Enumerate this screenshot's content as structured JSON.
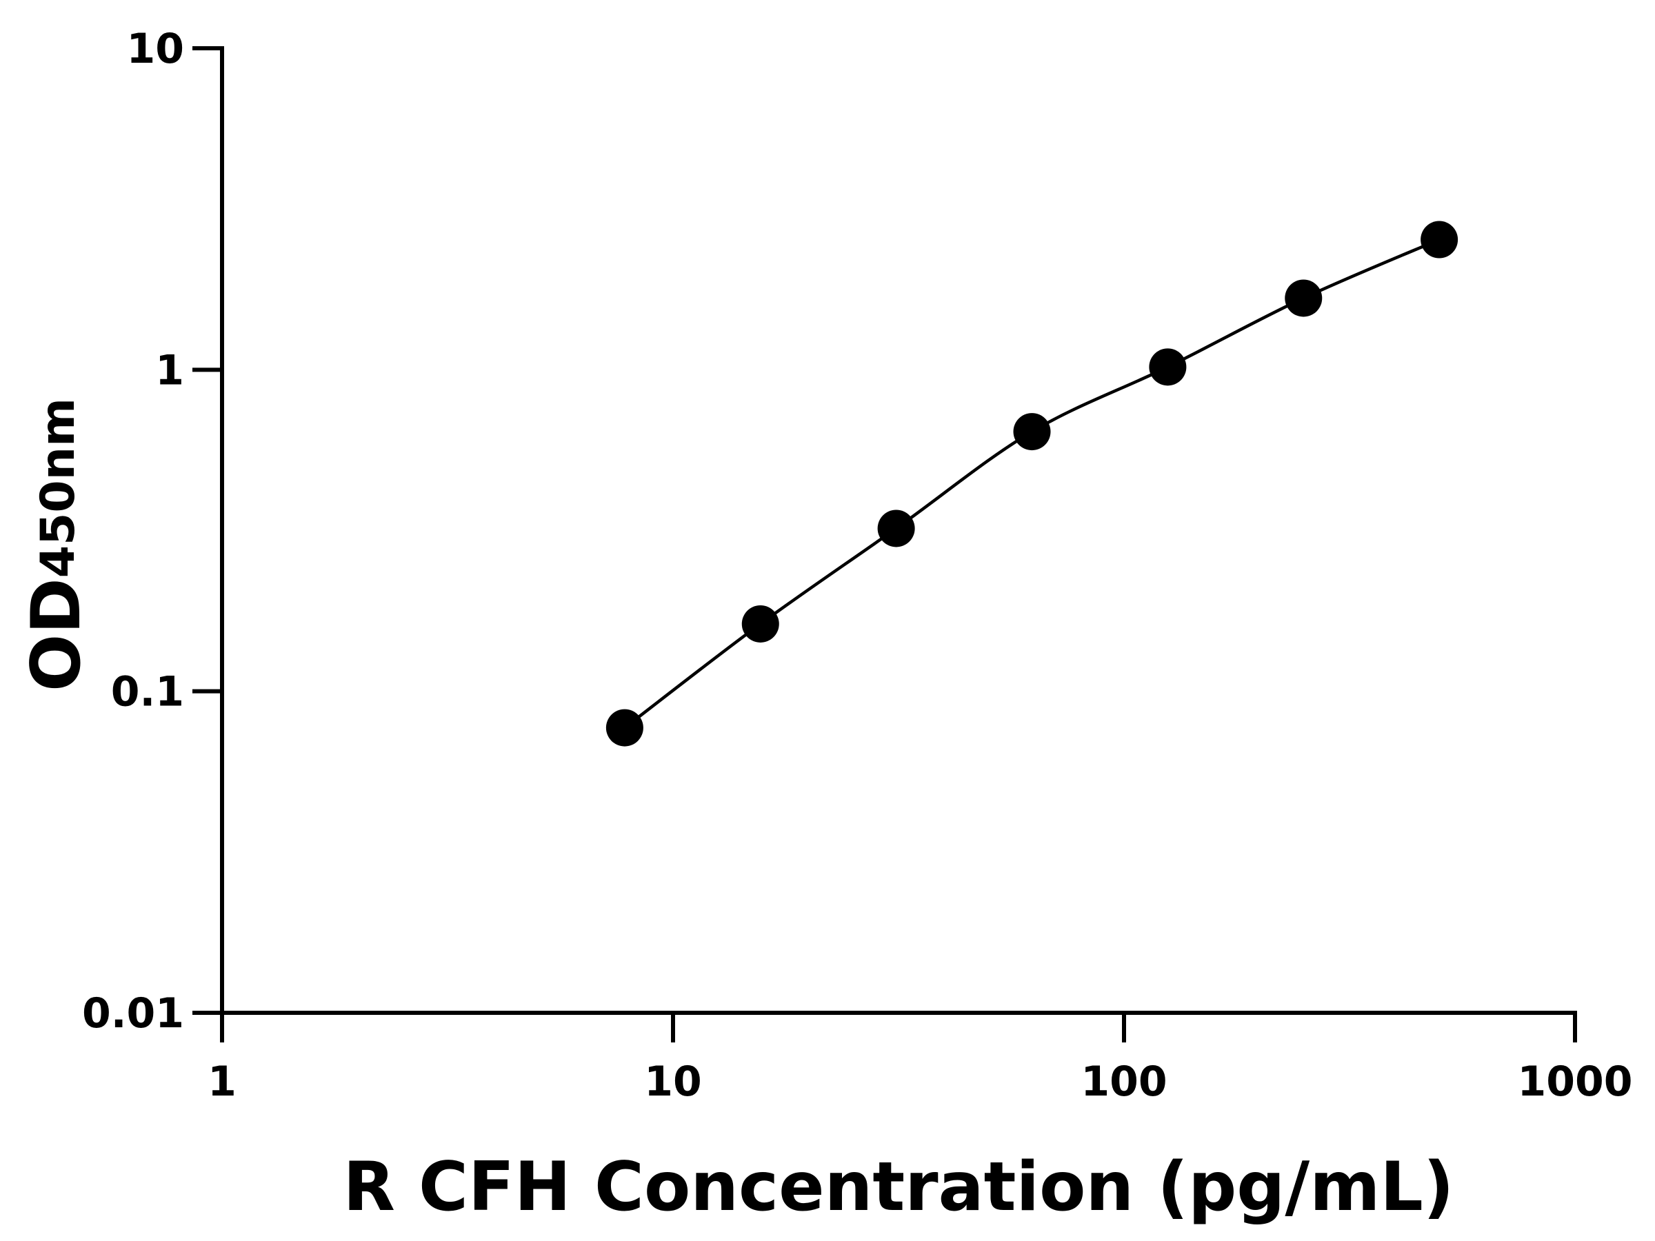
{
  "chart_data": {
    "type": "scatter",
    "x_label": "R CFH Concentration (pg/mL)",
    "y_label": "OD",
    "y_label_subscript": "450nm",
    "x": [
      7.8125,
      15.625,
      31.25,
      62.5,
      125,
      250,
      500
    ],
    "series": [
      {
        "color": "#000000",
        "values": [
          0.077,
          0.162,
          0.321,
          0.642,
          1.02,
          1.67,
          2.54
        ]
      }
    ],
    "xlim": [
      1,
      1000
    ],
    "xticks": [
      1,
      10,
      100,
      1000
    ],
    "ylim": [
      0.01,
      10
    ],
    "yticks": [
      0.01,
      0.1,
      1,
      10
    ],
    "x_log": true,
    "y_log": true,
    "curve": true
  }
}
